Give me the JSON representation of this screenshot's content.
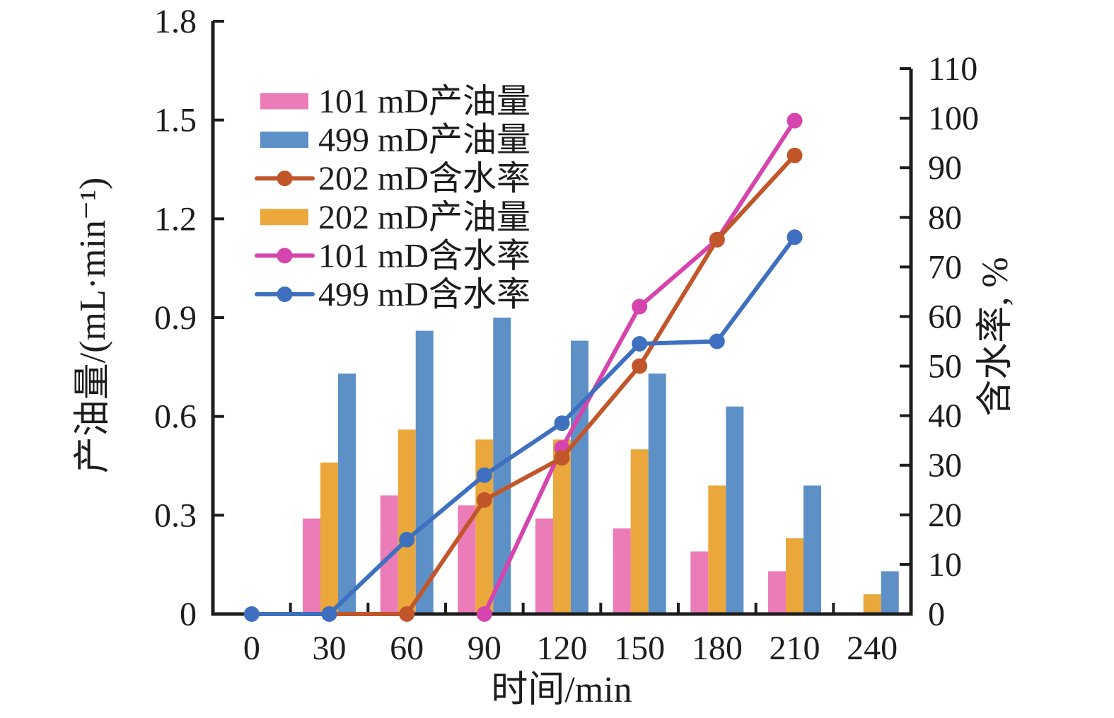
{
  "figure": {
    "background": "#ffffff",
    "axis_color": "#1d1d1d"
  },
  "chart_data": {
    "type": "bar+line",
    "title": "",
    "xlabel": "时间/min",
    "ylabel_left": "产油量/(mL·min⁻¹)",
    "ylabel_right": "含水率, %",
    "categories": [
      "0",
      "30",
      "60",
      "90",
      "120",
      "150",
      "180",
      "210",
      "240"
    ],
    "y_left": {
      "min": 0,
      "max": 1.8,
      "step": 0.3,
      "tick_labels": [
        "0",
        "0.3",
        "0.6",
        "0.9",
        "1.2",
        "1.5",
        "1.8"
      ]
    },
    "y_right": {
      "min": 0,
      "max": 110,
      "step": 10,
      "tick_labels": [
        "0",
        "10",
        "20",
        "30",
        "40",
        "50",
        "60",
        "70",
        "80",
        "90",
        "100",
        "110"
      ]
    },
    "grid": false,
    "legend_position": "upper-left-inside",
    "bar_series": [
      {
        "name": "101 mD产油量",
        "unit": "mL·min⁻¹",
        "axis": "left",
        "color": "#ec7cb7",
        "values": [
          0,
          0.29,
          0.36,
          0.33,
          0.29,
          0.26,
          0.19,
          0.13,
          0
        ]
      },
      {
        "name": "202 mD产油量",
        "unit": "mL·min⁻¹",
        "axis": "left",
        "color": "#e9a73c",
        "values": [
          0,
          0.46,
          0.56,
          0.53,
          0.53,
          0.5,
          0.39,
          0.23,
          0.06
        ]
      },
      {
        "name": "499 mD产油量",
        "unit": "mL·min⁻¹",
        "axis": "left",
        "color": "#5e90c8",
        "values": [
          0,
          0.73,
          0.86,
          0.9,
          0.83,
          0.73,
          0.63,
          0.39,
          0.13
        ]
      }
    ],
    "line_series": [
      {
        "name": "101 mD含水率",
        "unit": "%",
        "axis": "right",
        "color": "#d644ad",
        "values": [
          null,
          null,
          null,
          0,
          33.5,
          62,
          75.5,
          99.5,
          null
        ]
      },
      {
        "name": "202 mD含水率",
        "unit": "%",
        "axis": "right",
        "color": "#c1562b",
        "values": [
          null,
          0,
          0,
          23,
          31.5,
          50,
          75.5,
          92.5,
          null
        ]
      },
      {
        "name": "499 mD含水率",
        "unit": "%",
        "axis": "right",
        "color": "#3e70bf",
        "values": [
          0,
          0,
          15,
          28,
          38.5,
          54.5,
          55,
          76,
          null
        ]
      }
    ],
    "legend": [
      {
        "label": "101 mD产油量",
        "marker": "bar",
        "color": "#ec7cb7"
      },
      {
        "label": "499 mD产油量",
        "marker": "bar",
        "color": "#5e90c8"
      },
      {
        "label": "202 mD含水率",
        "marker": "line",
        "color": "#c1562b"
      },
      {
        "label": "202 mD产油量",
        "marker": "bar",
        "color": "#e9a73c"
      },
      {
        "label": "101 mD含水率",
        "marker": "line",
        "color": "#d644ad"
      },
      {
        "label": "499 mD含水率",
        "marker": "line",
        "color": "#3e70bf"
      }
    ]
  }
}
